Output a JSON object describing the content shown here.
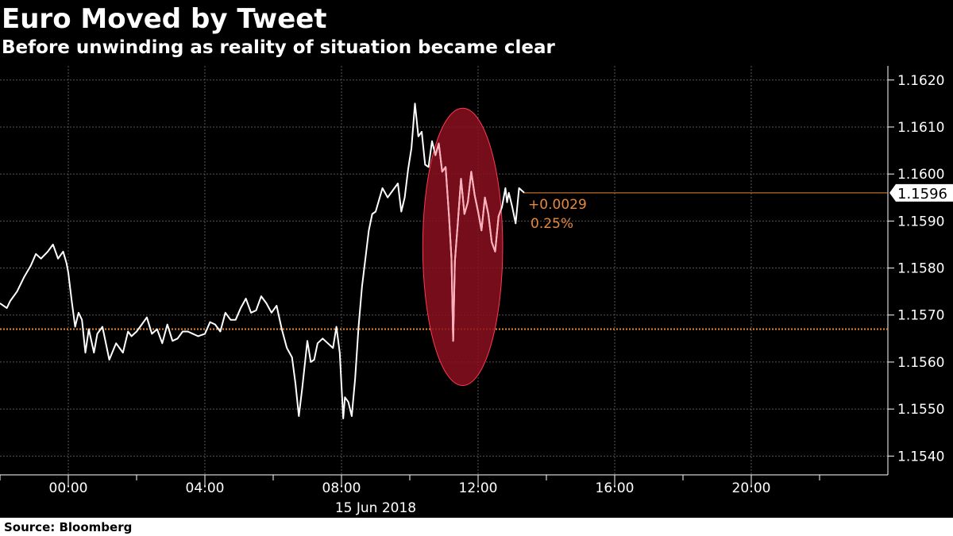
{
  "title": "Euro Moved by Tweet",
  "subtitle": "Before unwinding as reality of situation became clear",
  "source": "Source: Bloomberg",
  "colors": {
    "background": "#000000",
    "line": "#ffffff",
    "reference": "#e8883a",
    "highlight_fill": "#8b0f1f",
    "highlight_stroke": "#ff3a52",
    "highlight_line": "#ffb0bc"
  },
  "chart_data": {
    "type": "line",
    "title": "Euro Moved by Tweet",
    "subtitle": "Before unwinding as reality of situation became clear",
    "x_axis": {
      "tick_labels": [
        "00:00",
        "04:00",
        "08:00",
        "12:00",
        "16:00",
        "20:00"
      ],
      "date_label": "15 Jun 2018",
      "xlim_hours": [
        -2,
        24
      ]
    },
    "y_axis": {
      "position": "right",
      "tick_labels": [
        "1.1540",
        "1.1550",
        "1.1560",
        "1.1570",
        "1.1580",
        "1.1590",
        "1.1600",
        "1.1610",
        "1.1620"
      ],
      "ylim": [
        1.1536,
        1.1623
      ]
    },
    "grid": true,
    "reference_line": {
      "value": 1.1567,
      "style": "dotted"
    },
    "last_value": {
      "x_hours": 13.35,
      "value": 1.1596,
      "label": "1.1596",
      "change_abs": "+0.0029",
      "change_pct": "0.25%"
    },
    "highlight_ellipse": {
      "x_center_hours": 11.55,
      "y_center": 1.15845,
      "x_radius_hours": 1.17,
      "y_radius": 0.00295
    },
    "series": [
      {
        "x": [
          -2.0,
          -1.9,
          -1.8,
          -1.7,
          -1.5,
          -1.3,
          -1.1,
          -0.95,
          -0.8,
          -0.6,
          -0.45,
          -0.3,
          -0.15,
          -0.05,
          0.0,
          0.1,
          0.2,
          0.3,
          0.4,
          0.5,
          0.6,
          0.75,
          0.85,
          1.0,
          1.2,
          1.4,
          1.6,
          1.75,
          1.85,
          2.0,
          2.15,
          2.3,
          2.45,
          2.6,
          2.75,
          2.9,
          3.05,
          3.2,
          3.35,
          3.5,
          3.65,
          3.8,
          4.0,
          4.15,
          4.3,
          4.45,
          4.6,
          4.75,
          4.9,
          5.05,
          5.2,
          5.35,
          5.5,
          5.65,
          5.8,
          5.95,
          6.1,
          6.25,
          6.4,
          6.55,
          6.65,
          6.75,
          6.85,
          7.0,
          7.1,
          7.2,
          7.3,
          7.45,
          7.6,
          7.75,
          7.85,
          7.95,
          8.05,
          8.1,
          8.2,
          8.3,
          8.4,
          8.5,
          8.6,
          8.7,
          8.8,
          8.9,
          9.0,
          9.1,
          9.2,
          9.35,
          9.5,
          9.65,
          9.75,
          9.85,
          9.95,
          10.05,
          10.15,
          10.25,
          10.35,
          10.45,
          10.55,
          10.65,
          10.75,
          10.85,
          10.95,
          11.05,
          11.15,
          11.22,
          11.27,
          11.32,
          11.4,
          11.5,
          11.6,
          11.7,
          11.8,
          11.9,
          12.0,
          12.1,
          12.2,
          12.3,
          12.4,
          12.5,
          12.6,
          12.7,
          12.8,
          12.85,
          12.9,
          13.0,
          13.1,
          13.2,
          13.35
        ],
        "y": [
          1.15725,
          1.1572,
          1.15715,
          1.1573,
          1.1575,
          1.1578,
          1.15805,
          1.1583,
          1.1582,
          1.15835,
          1.1585,
          1.1582,
          1.15835,
          1.1581,
          1.1579,
          1.1573,
          1.15675,
          1.15705,
          1.1569,
          1.1562,
          1.1567,
          1.1562,
          1.1566,
          1.15675,
          1.15605,
          1.1564,
          1.1562,
          1.15665,
          1.15655,
          1.15665,
          1.1568,
          1.15695,
          1.1566,
          1.1567,
          1.1564,
          1.1568,
          1.15645,
          1.1565,
          1.15665,
          1.15665,
          1.1566,
          1.15655,
          1.1566,
          1.15685,
          1.1568,
          1.15665,
          1.15705,
          1.1569,
          1.1569,
          1.15715,
          1.15735,
          1.15705,
          1.1571,
          1.1574,
          1.15725,
          1.15705,
          1.1572,
          1.1567,
          1.1563,
          1.1561,
          1.15555,
          1.15485,
          1.15545,
          1.15645,
          1.156,
          1.15605,
          1.1564,
          1.1565,
          1.1564,
          1.1563,
          1.15675,
          1.1562,
          1.1548,
          1.15525,
          1.15515,
          1.15485,
          1.15565,
          1.15675,
          1.1576,
          1.1582,
          1.1588,
          1.15915,
          1.1592,
          1.15945,
          1.1597,
          1.1595,
          1.15965,
          1.1598,
          1.1592,
          1.1595,
          1.1601,
          1.16055,
          1.1615,
          1.1608,
          1.1609,
          1.1602,
          1.16015,
          1.1607,
          1.1604,
          1.16065,
          1.16005,
          1.16015,
          1.1591,
          1.1582,
          1.15645,
          1.15815,
          1.1589,
          1.1599,
          1.15915,
          1.1594,
          1.16005,
          1.15955,
          1.1592,
          1.1588,
          1.1595,
          1.15915,
          1.15855,
          1.15835,
          1.1591,
          1.1593,
          1.1597,
          1.1594,
          1.1596,
          1.1593,
          1.15895,
          1.1597,
          1.1596
        ]
      }
    ]
  }
}
